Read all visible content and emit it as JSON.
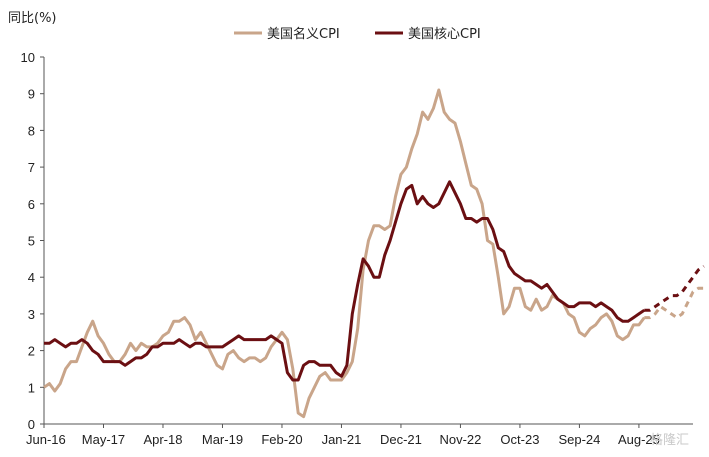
{
  "chart_data": {
    "type": "line",
    "ylabel": "同比(%)",
    "ylim": [
      0,
      10
    ],
    "yticks": [
      "0",
      "1",
      "2",
      "3",
      "4",
      "5",
      "6",
      "7",
      "8",
      "9",
      "10"
    ],
    "xticks": [
      "Jun-16",
      "May-17",
      "Apr-18",
      "Mar-19",
      "Feb-20",
      "Jan-21",
      "Dec-21",
      "Nov-22",
      "Oct-23",
      "Sep-24",
      "Aug-25"
    ],
    "grid": false,
    "legend_position": "top",
    "series": [
      {
        "name": "美国名义CPI",
        "color": "#c9a58a",
        "values": [
          1.0,
          1.1,
          0.9,
          1.1,
          1.5,
          1.7,
          1.7,
          2.1,
          2.5,
          2.8,
          2.4,
          2.2,
          1.9,
          1.7,
          1.7,
          1.9,
          2.2,
          2.0,
          2.2,
          2.1,
          2.1,
          2.2,
          2.4,
          2.5,
          2.8,
          2.8,
          2.9,
          2.7,
          2.3,
          2.5,
          2.2,
          1.9,
          1.6,
          1.5,
          1.9,
          2.0,
          1.8,
          1.7,
          1.8,
          1.8,
          1.7,
          1.8,
          2.1,
          2.3,
          2.5,
          2.3,
          1.5,
          0.3,
          0.2,
          0.7,
          1.0,
          1.3,
          1.4,
          1.2,
          1.2,
          1.2,
          1.4,
          1.7,
          2.6,
          4.2,
          5.0,
          5.4,
          5.4,
          5.3,
          5.4,
          6.2,
          6.8,
          7.0,
          7.5,
          7.9,
          8.5,
          8.3,
          8.6,
          9.1,
          8.5,
          8.3,
          8.2,
          7.7,
          7.1,
          6.5,
          6.4,
          6.0,
          5.0,
          4.9,
          4.0,
          3.0,
          3.2,
          3.7,
          3.7,
          3.2,
          3.1,
          3.4,
          3.1,
          3.2,
          3.5,
          3.4,
          3.3,
          3.0,
          2.9,
          2.5,
          2.4,
          2.6,
          2.7,
          2.9,
          3.0,
          2.8,
          2.4,
          2.3,
          2.4,
          2.7,
          2.7,
          2.9
        ],
        "forecast": [
          2.9,
          3.0,
          3.2,
          3.1,
          3.0,
          2.9,
          3.0,
          3.3,
          3.6,
          3.7,
          3.7
        ]
      },
      {
        "name": "美国核心CPI",
        "color": "#6b0f12",
        "values": [
          2.2,
          2.2,
          2.3,
          2.2,
          2.1,
          2.2,
          2.2,
          2.3,
          2.2,
          2.0,
          1.9,
          1.7,
          1.7,
          1.7,
          1.7,
          1.6,
          1.7,
          1.8,
          1.8,
          1.9,
          2.1,
          2.1,
          2.2,
          2.2,
          2.2,
          2.3,
          2.2,
          2.1,
          2.2,
          2.2,
          2.1,
          2.1,
          2.1,
          2.1,
          2.2,
          2.3,
          2.4,
          2.3,
          2.3,
          2.3,
          2.3,
          2.3,
          2.4,
          2.3,
          2.2,
          1.4,
          1.2,
          1.2,
          1.6,
          1.7,
          1.7,
          1.6,
          1.6,
          1.6,
          1.4,
          1.3,
          1.6,
          3.0,
          3.8,
          4.5,
          4.3,
          4.0,
          4.0,
          4.6,
          5.0,
          5.5,
          6.0,
          6.4,
          6.5,
          6.0,
          6.2,
          6.0,
          5.9,
          6.0,
          6.3,
          6.6,
          6.3,
          6.0,
          5.6,
          5.6,
          5.5,
          5.6,
          5.6,
          5.3,
          4.8,
          4.7,
          4.3,
          4.1,
          4.0,
          3.9,
          3.9,
          3.8,
          3.7,
          3.8,
          3.6,
          3.4,
          3.3,
          3.2,
          3.2,
          3.3,
          3.3,
          3.3,
          3.2,
          3.3,
          3.2,
          3.1,
          2.9,
          2.8,
          2.8,
          2.9,
          3.0,
          3.1
        ],
        "forecast": [
          3.1,
          3.2,
          3.3,
          3.4,
          3.5,
          3.5,
          3.6,
          3.8,
          4.0,
          4.2,
          4.3
        ]
      }
    ],
    "watermark": "格隆汇"
  }
}
